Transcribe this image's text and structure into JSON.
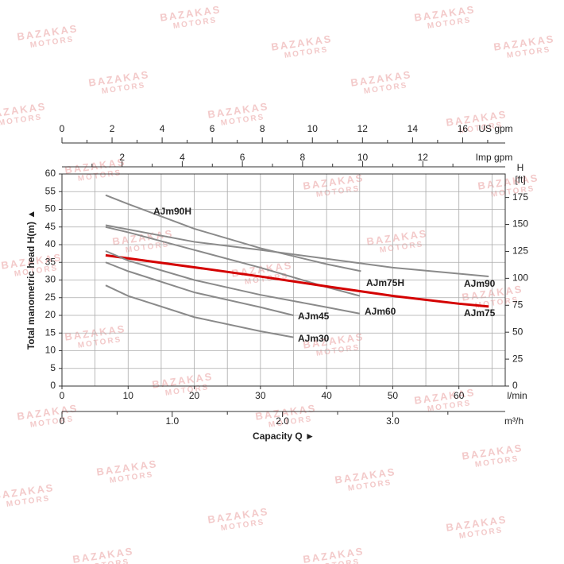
{
  "chart_data": {
    "type": "line",
    "y_label": "Total manometric head H(m) ▲",
    "x_label": "Capacity Q ►",
    "x_unit": "l/min",
    "xlim": [
      0,
      67
    ],
    "xticks": [
      0,
      10,
      20,
      30,
      40,
      50,
      60
    ],
    "xminorticks": [
      5,
      15,
      25,
      35,
      45,
      55,
      65
    ],
    "ylim": [
      0,
      60
    ],
    "yticks": [
      0,
      5,
      10,
      15,
      20,
      25,
      30,
      35,
      40,
      45,
      50,
      55,
      60
    ],
    "y2_label": [
      "H",
      "[ft]"
    ],
    "y2lim": [
      0,
      196.85
    ],
    "y2ticks": [
      0,
      25,
      50,
      75,
      100,
      125,
      150,
      175
    ],
    "grid": true,
    "x_axes": [
      {
        "label": "m³/h",
        "lim": [
          0,
          4.02
        ],
        "ticks": [
          0,
          {
            "value": 1,
            "label": "1.0"
          },
          {
            "value": 2,
            "label": "2.0"
          },
          {
            "value": 3,
            "label": "3.0"
          }
        ],
        "minor_ticks": [
          0.5,
          1.5,
          2.5,
          3.5
        ]
      },
      {
        "label": "US gpm",
        "lim": [
          0,
          17.7
        ],
        "ticks": [
          0,
          2,
          4,
          6,
          8,
          10,
          12,
          14,
          16
        ],
        "minor_ticks": [
          1,
          3,
          5,
          7,
          9,
          11,
          13,
          15,
          17
        ]
      },
      {
        "label": "Imp gpm",
        "lim": [
          0,
          14.74
        ],
        "ticks": [
          2,
          4,
          6,
          8,
          10,
          12
        ],
        "minor_ticks": [
          1,
          3,
          5,
          7,
          9,
          11,
          13
        ]
      }
    ],
    "series": [
      {
        "name": "AJm90H",
        "color": "#8a8a8a",
        "x": [
          6.6,
          10,
          20,
          30,
          40,
          45.2
        ],
        "values": [
          54,
          51.5,
          44.5,
          39,
          34.5,
          32.5
        ]
      },
      {
        "name": "AJm90",
        "color": "#8a8a8a",
        "x": [
          6.6,
          20,
          30,
          40,
          50,
          64.5
        ],
        "values": [
          45.5,
          40.8,
          38.5,
          36,
          33.5,
          31
        ]
      },
      {
        "name": "AJm75H",
        "color": "#8a8a8a",
        "x": [
          6.6,
          10,
          20,
          30,
          40,
          45
        ],
        "values": [
          45,
          43.5,
          38.5,
          33.5,
          28,
          25.5
        ]
      },
      {
        "name": "AJm75",
        "color": "#d40000",
        "x": [
          6.6,
          20,
          30,
          40,
          50,
          60,
          64.5
        ],
        "values": [
          37,
          33.6,
          31,
          28.2,
          25.5,
          23.3,
          22.5
        ]
      },
      {
        "name": "AJm60",
        "color": "#8a8a8a",
        "x": [
          6.6,
          10,
          20,
          30,
          40,
          45
        ],
        "values": [
          38.2,
          35.5,
          30,
          25.8,
          22.3,
          20.5
        ]
      },
      {
        "name": "AJm45",
        "color": "#8a8a8a",
        "x": [
          6.6,
          10,
          20,
          30,
          35
        ],
        "values": [
          35,
          32.5,
          26.5,
          22.3,
          20
        ]
      },
      {
        "name": "AJm30",
        "color": "#8a8a8a",
        "x": [
          6.6,
          10,
          20,
          30,
          35
        ],
        "values": [
          28.5,
          25.5,
          19.5,
          15.5,
          13.8
        ]
      }
    ],
    "watermark": [
      "BAZAKAS",
      "MOTORS"
    ]
  }
}
